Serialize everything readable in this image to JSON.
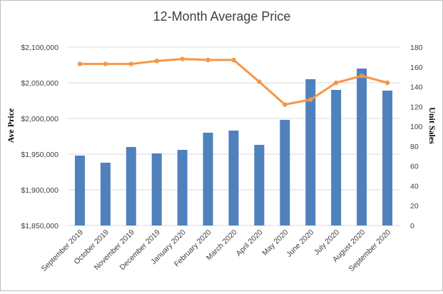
{
  "chart_data": {
    "type": "bar+line",
    "title": "12-Month Average Price",
    "categories": [
      "September 2019",
      "October 2019",
      "November 2019",
      "December 2019",
      "January 2020",
      "February 2020",
      "March 2020",
      "April 2020",
      "May 2020",
      "June 2020",
      "July 2020",
      "August 2020",
      "September 2020"
    ],
    "series": [
      {
        "type": "bar",
        "axis": "left",
        "color": "#4f81bd",
        "values": [
          1948000,
          1938000,
          1960000,
          1951000,
          1956000,
          1980000,
          1983000,
          1963000,
          1998000,
          2055000,
          2040000,
          2070000,
          2039000
        ]
      },
      {
        "type": "line",
        "axis": "right",
        "color": "#f79646",
        "values": [
          163,
          163,
          163,
          166,
          168,
          167,
          167,
          145,
          122,
          127,
          144,
          151,
          144
        ]
      }
    ],
    "ylabel_left": "Ave Price",
    "ylabel_right": "Unit Sales",
    "ylim_left": [
      1850000,
      2100000
    ],
    "ylim_right": [
      0,
      180
    ],
    "yticks_left": [
      "$1,850,000",
      "$1,900,000",
      "$1,950,000",
      "$2,000,000",
      "$2,050,000",
      "$2,100,000"
    ],
    "yticks_right": [
      "0",
      "20",
      "40",
      "60",
      "80",
      "100",
      "120",
      "140",
      "160",
      "180"
    ],
    "grid": true,
    "legend": "none"
  }
}
